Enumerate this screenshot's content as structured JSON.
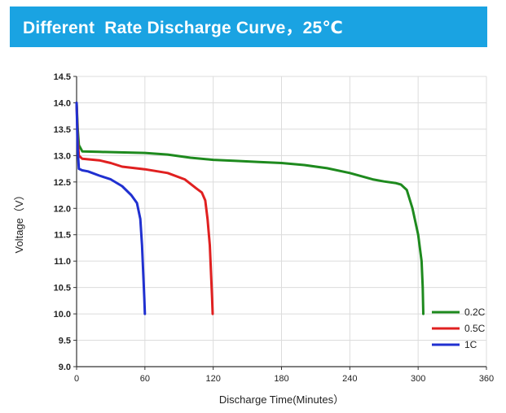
{
  "banner": {
    "title": "Different  Rate Discharge Curve，25℃"
  },
  "chart_data": {
    "type": "line",
    "title": "Different  Rate Discharge Curve，25℃",
    "xlabel": "Discharge Time(Minutes）",
    "ylabel": "Voltage（V）",
    "xlim": [
      0,
      360
    ],
    "ylim": [
      9.0,
      14.5
    ],
    "x_ticks": [
      0,
      60,
      120,
      180,
      240,
      300,
      360
    ],
    "y_ticks": [
      "9.0",
      "9.5",
      "10.0",
      "10.5",
      "11.0",
      "11.5",
      "12.0",
      "12.5",
      "13.0",
      "13.5",
      "14.0",
      "14.5"
    ],
    "grid": true,
    "legend_position": "bottom-right",
    "series": [
      {
        "name": "0.2C",
        "color": "#1e8a1e",
        "points": [
          [
            0,
            14.0
          ],
          [
            1,
            13.5
          ],
          [
            2,
            13.2
          ],
          [
            5,
            13.08
          ],
          [
            20,
            13.07
          ],
          [
            60,
            13.05
          ],
          [
            80,
            13.02
          ],
          [
            100,
            12.96
          ],
          [
            120,
            12.92
          ],
          [
            140,
            12.9
          ],
          [
            160,
            12.88
          ],
          [
            180,
            12.86
          ],
          [
            200,
            12.82
          ],
          [
            220,
            12.76
          ],
          [
            240,
            12.67
          ],
          [
            260,
            12.55
          ],
          [
            270,
            12.51
          ],
          [
            280,
            12.48
          ],
          [
            285,
            12.45
          ],
          [
            290,
            12.35
          ],
          [
            295,
            12.0
          ],
          [
            300,
            11.5
          ],
          [
            303,
            11.0
          ],
          [
            304,
            10.5
          ],
          [
            304.5,
            10.0
          ]
        ]
      },
      {
        "name": "0.5C",
        "color": "#e02020",
        "points": [
          [
            0,
            14.0
          ],
          [
            1,
            13.3
          ],
          [
            2,
            13.0
          ],
          [
            5,
            12.94
          ],
          [
            20,
            12.91
          ],
          [
            30,
            12.86
          ],
          [
            40,
            12.79
          ],
          [
            60,
            12.74
          ],
          [
            80,
            12.67
          ],
          [
            95,
            12.55
          ],
          [
            105,
            12.38
          ],
          [
            110,
            12.3
          ],
          [
            113,
            12.15
          ],
          [
            115,
            11.8
          ],
          [
            117,
            11.3
          ],
          [
            118,
            10.8
          ],
          [
            119,
            10.3
          ],
          [
            119.5,
            10.0
          ]
        ]
      },
      {
        "name": "1C",
        "color": "#2030d0",
        "points": [
          [
            0,
            14.0
          ],
          [
            1,
            13.1
          ],
          [
            2,
            12.75
          ],
          [
            5,
            12.72
          ],
          [
            10,
            12.7
          ],
          [
            20,
            12.62
          ],
          [
            30,
            12.55
          ],
          [
            40,
            12.42
          ],
          [
            48,
            12.25
          ],
          [
            53,
            12.1
          ],
          [
            56,
            11.8
          ],
          [
            57.5,
            11.3
          ],
          [
            58.5,
            10.8
          ],
          [
            59.5,
            10.3
          ],
          [
            60,
            10.0
          ]
        ]
      }
    ]
  }
}
